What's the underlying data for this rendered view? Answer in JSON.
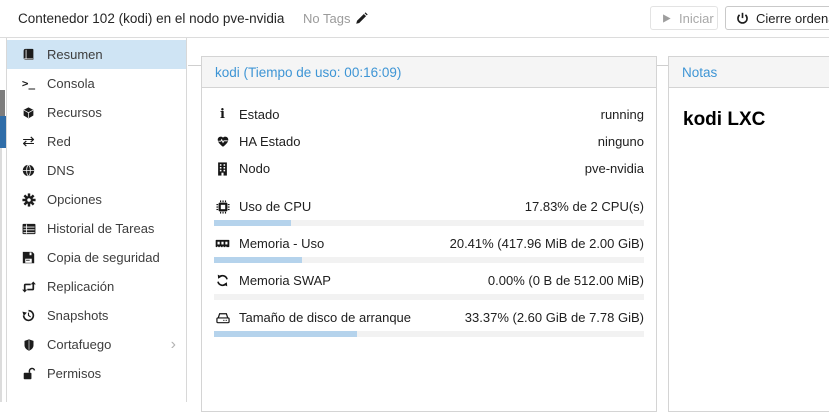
{
  "topbar": {
    "title": "Contenedor 102 (kodi) en el nodo pve-nvidia",
    "tags_label": "No Tags",
    "tags_edit_icon": "pencil-icon",
    "start_button": {
      "label": "Iniciar",
      "icon": "play-icon",
      "disabled": true
    },
    "shutdown_button": {
      "label": "Cierre ordenado",
      "icon": "power-icon"
    }
  },
  "sidebar": {
    "items": [
      {
        "label": "Resumen",
        "icon": "book-icon",
        "selected": true
      },
      {
        "label": "Consola",
        "icon": "terminal-icon"
      },
      {
        "label": "Recursos",
        "icon": "cube-icon"
      },
      {
        "label": "Red",
        "icon": "network-arrows-icon"
      },
      {
        "label": "DNS",
        "icon": "globe-icon"
      },
      {
        "label": "Opciones",
        "icon": "gear-icon"
      },
      {
        "label": "Historial de Tareas",
        "icon": "task-list-icon"
      },
      {
        "label": "Copia de seguridad",
        "icon": "floppy-icon"
      },
      {
        "label": "Replicación",
        "icon": "replication-icon"
      },
      {
        "label": "Snapshots",
        "icon": "history-icon"
      },
      {
        "label": "Cortafuego",
        "icon": "shield-icon",
        "expandable": true
      },
      {
        "label": "Permisos",
        "icon": "unlock-icon"
      }
    ]
  },
  "summary_panel": {
    "title": "kodi (Tiempo de uso: 00:16:09)",
    "status_rows": [
      {
        "icon": "info-icon",
        "label": "Estado",
        "value": "running"
      },
      {
        "icon": "heartbeat-icon",
        "label": "HA Estado",
        "value": "ninguno"
      },
      {
        "icon": "building-icon",
        "label": "Nodo",
        "value": "pve-nvidia"
      }
    ],
    "usage_rows": [
      {
        "icon": "cpu-icon",
        "label": "Uso de CPU",
        "value": "17.83% de 2 CPU(s)",
        "percent": 17.83
      },
      {
        "icon": "memory-icon",
        "label": "Memoria - Uso",
        "value": "20.41% (417.96 MiB de 2.00 GiB)",
        "percent": 20.41
      },
      {
        "icon": "swap-icon",
        "label": "Memoria SWAP",
        "value": "0.00% (0 B de 512.00 MiB)",
        "percent": 0
      },
      {
        "icon": "disk-icon",
        "label": "Tamaño de disco de arranque",
        "value": "33.37% (2.60 GiB de 7.78 GiB)",
        "percent": 33.37
      }
    ]
  },
  "notes_panel": {
    "title": "Notas",
    "content": "kodi LXC"
  },
  "colors": {
    "panel_title_blue": "#3e95d5",
    "sidebar_selected": "#cfe4f4",
    "tree_selected_blue": "#2f6da8",
    "bar_fill": "#b5d3ec",
    "bar_track": "#f2f2f2",
    "panel_border": "#d4d4d4",
    "panel_header_bg": "#f5f5f5"
  }
}
